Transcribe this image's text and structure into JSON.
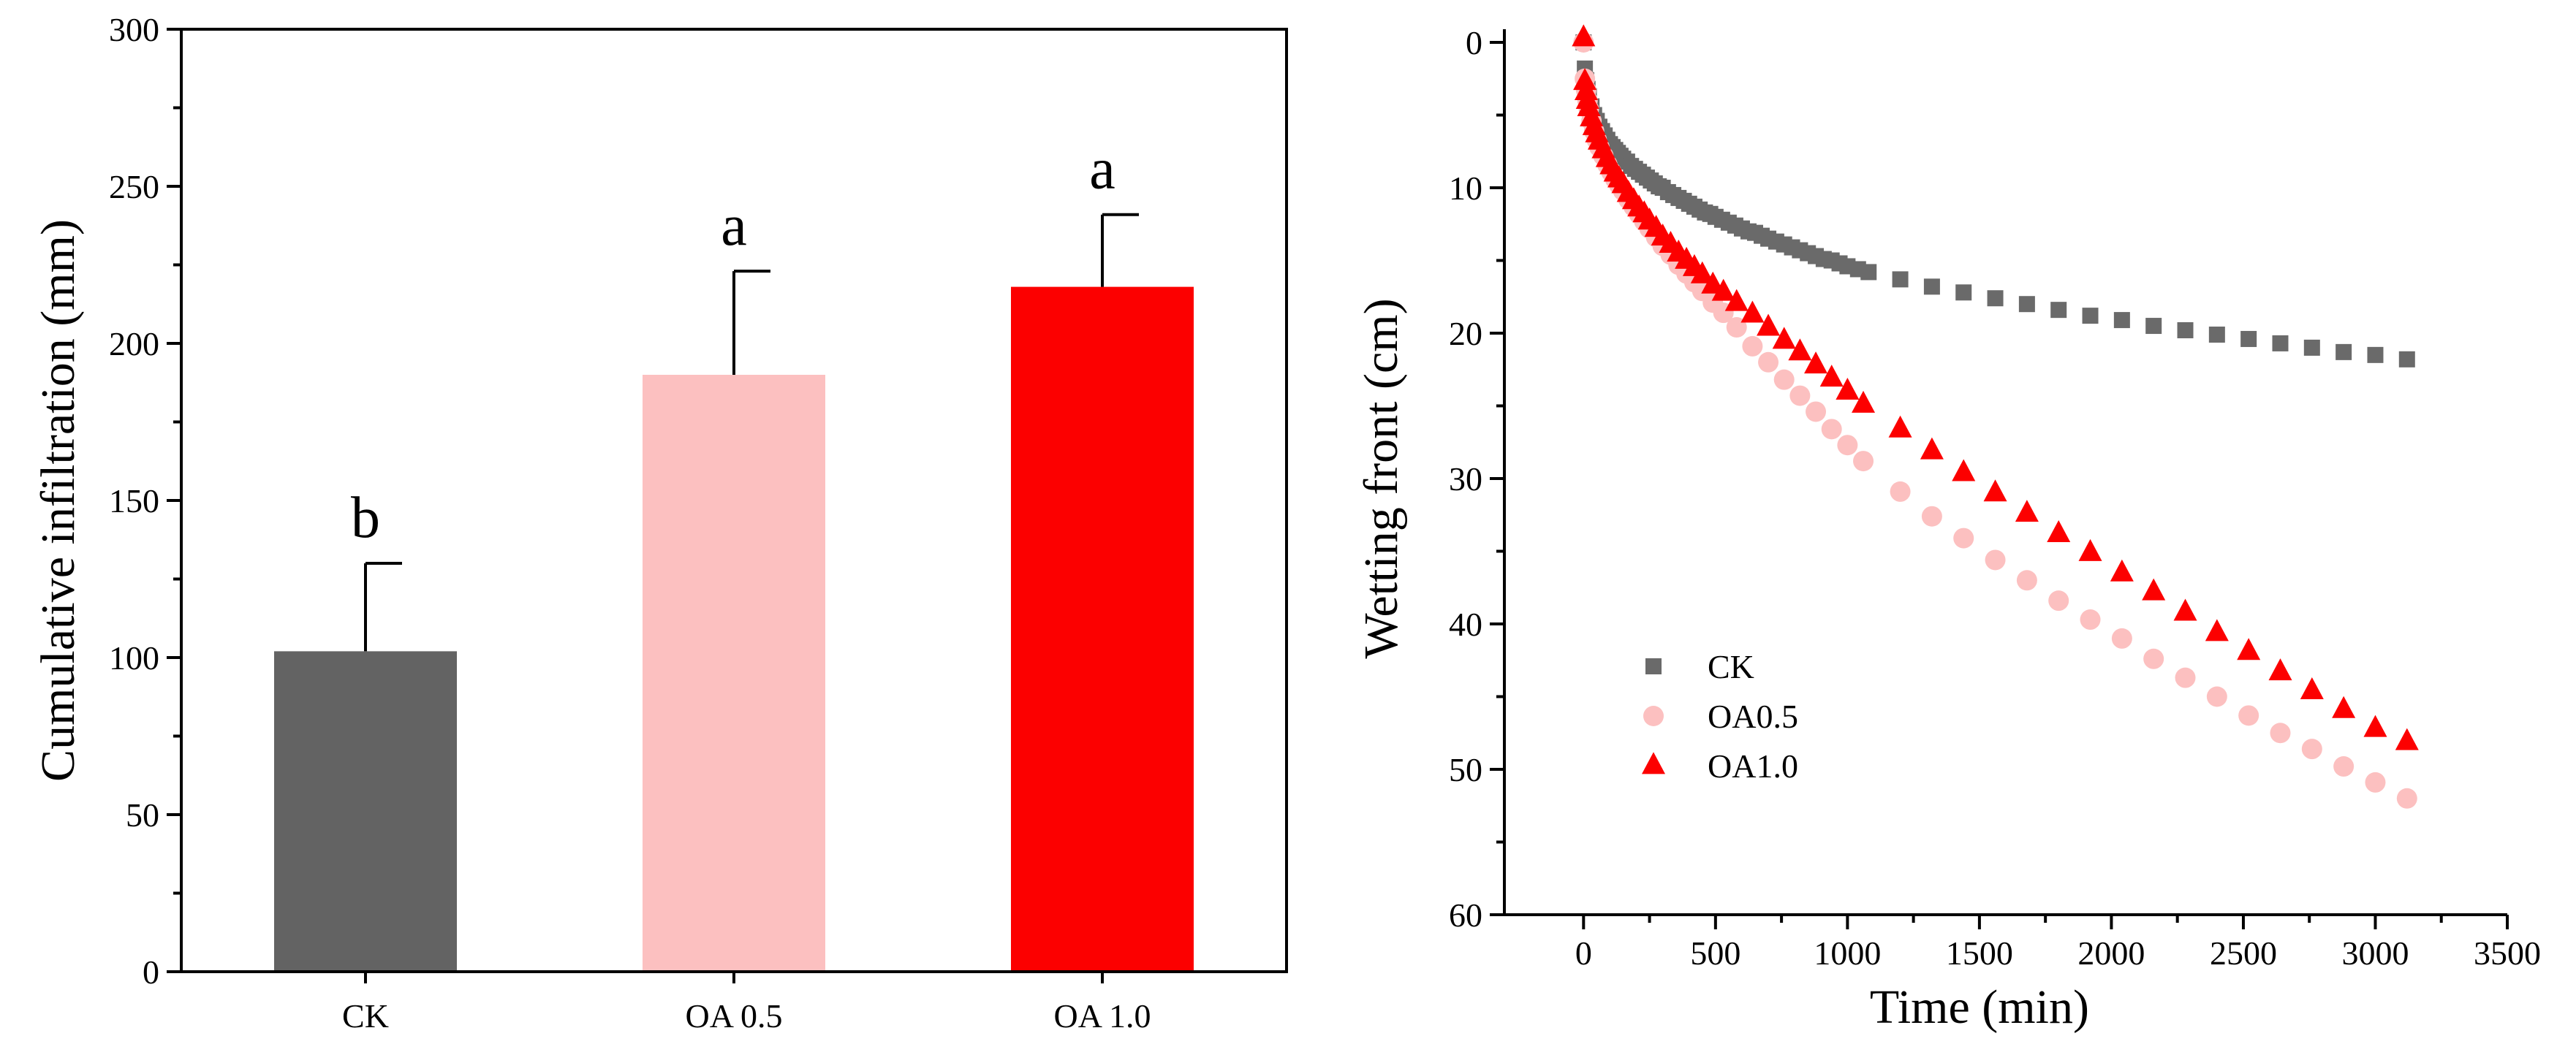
{
  "chart_data": [
    {
      "type": "bar",
      "ylabel": "Cumulative infiltration (mm)",
      "xlabel": "",
      "ylim": [
        0,
        300
      ],
      "yticks": [
        "0",
        "50",
        "100",
        "150",
        "200",
        "250",
        "300"
      ],
      "categories": [
        "CK",
        "OA 0.5",
        "OA 1.0"
      ],
      "values": [
        102,
        190,
        218
      ],
      "errors": [
        28,
        33,
        23
      ],
      "significance": [
        "b",
        "a",
        "a"
      ],
      "colors": [
        "#636363",
        "#fcc0c0",
        "#fc0000"
      ]
    },
    {
      "type": "scatter",
      "xlabel": "Time (min)",
      "ylabel": "Wetting front (cm)",
      "xlim": [
        -300,
        3500
      ],
      "ylim": [
        60,
        -2
      ],
      "xticks": [
        "0",
        "500",
        "1000",
        "1500",
        "2000",
        "2500",
        "3000",
        "3500"
      ],
      "yticks": [
        "0",
        "10",
        "20",
        "30",
        "40",
        "50",
        "60"
      ],
      "legend_position": "lower-left",
      "series": [
        {
          "name": "CK",
          "marker": "square",
          "color": "#6a6a6a",
          "x": [
            0,
            5,
            10,
            15,
            20,
            30,
            40,
            50,
            60,
            70,
            80,
            90,
            100,
            110,
            120,
            130,
            140,
            150,
            165,
            180,
            195,
            210,
            225,
            240,
            255,
            270,
            285,
            300,
            320,
            340,
            360,
            380,
            400,
            420,
            440,
            460,
            480,
            500,
            525,
            550,
            575,
            600,
            625,
            650,
            675,
            700,
            730,
            760,
            790,
            820,
            850,
            880,
            910,
            940,
            970,
            1000,
            1040,
            1080,
            1200,
            1320,
            1440,
            1560,
            1680,
            1800,
            1920,
            2040,
            2160,
            2280,
            2400,
            2520,
            2640,
            2760,
            2880,
            3000,
            3120
          ],
          "y": [
            0,
            1.8,
            2.6,
            3.2,
            3.7,
            4.4,
            5.0,
            5.4,
            5.8,
            6.1,
            6.4,
            6.7,
            7.0,
            7.2,
            7.4,
            7.6,
            7.8,
            8.0,
            8.2,
            8.5,
            8.7,
            8.9,
            9.1,
            9.3,
            9.5,
            9.7,
            9.9,
            10.0,
            10.3,
            10.5,
            10.7,
            10.9,
            11.1,
            11.3,
            11.5,
            11.7,
            11.8,
            12.0,
            12.2,
            12.4,
            12.6,
            12.8,
            13.0,
            13.1,
            13.3,
            13.5,
            13.7,
            13.9,
            14.1,
            14.3,
            14.5,
            14.7,
            14.9,
            15.0,
            15.2,
            15.4,
            15.6,
            15.8,
            16.3,
            16.8,
            17.2,
            17.6,
            18.0,
            18.4,
            18.8,
            19.1,
            19.5,
            19.8,
            20.1,
            20.4,
            20.7,
            21.0,
            21.3,
            21.5,
            21.8
          ]
        },
        {
          "name": "OA0.5",
          "marker": "circle",
          "color": "#fcc0c0",
          "x": [
            0,
            5,
            10,
            15,
            20,
            30,
            40,
            50,
            60,
            75,
            90,
            105,
            120,
            135,
            150,
            170,
            190,
            210,
            230,
            250,
            275,
            300,
            330,
            360,
            390,
            420,
            450,
            490,
            530,
            580,
            640,
            700,
            760,
            820,
            880,
            940,
            1000,
            1060,
            1200,
            1320,
            1440,
            1560,
            1680,
            1800,
            1920,
            2040,
            2160,
            2280,
            2400,
            2520,
            2640,
            2760,
            2880,
            3000,
            3120
          ],
          "y": [
            0,
            2.5,
            3.3,
            4.0,
            4.6,
            5.4,
            6.1,
            6.7,
            7.2,
            7.8,
            8.4,
            8.9,
            9.4,
            9.8,
            10.2,
            10.8,
            11.3,
            11.8,
            12.3,
            12.8,
            13.4,
            14.0,
            14.6,
            15.3,
            15.9,
            16.5,
            17.1,
            17.9,
            18.6,
            19.6,
            20.9,
            22.0,
            23.2,
            24.3,
            25.4,
            26.6,
            27.7,
            28.8,
            30.9,
            32.6,
            34.1,
            35.6,
            37.0,
            38.4,
            39.7,
            41.0,
            42.4,
            43.7,
            45.0,
            46.3,
            47.5,
            48.6,
            49.8,
            50.9,
            52.0
          ]
        },
        {
          "name": "OA1.0",
          "marker": "triangle",
          "color": "#fc0000",
          "x": [
            0,
            5,
            10,
            15,
            20,
            30,
            40,
            50,
            60,
            75,
            90,
            105,
            120,
            135,
            150,
            170,
            190,
            210,
            230,
            250,
            275,
            300,
            330,
            360,
            390,
            420,
            450,
            490,
            530,
            580,
            640,
            700,
            760,
            820,
            880,
            940,
            1000,
            1060,
            1200,
            1320,
            1440,
            1560,
            1680,
            1800,
            1920,
            2040,
            2160,
            2280,
            2400,
            2520,
            2640,
            2760,
            2880,
            3000,
            3120
          ],
          "y": [
            -0.3,
            2.7,
            3.4,
            4.0,
            4.5,
            5.2,
            5.8,
            6.3,
            6.8,
            7.4,
            8.0,
            8.5,
            9.0,
            9.4,
            9.8,
            10.4,
            10.9,
            11.4,
            11.8,
            12.3,
            12.8,
            13.4,
            13.9,
            14.5,
            15.0,
            15.5,
            16.0,
            16.7,
            17.2,
            17.9,
            18.7,
            19.6,
            20.5,
            21.3,
            22.2,
            23.1,
            24.0,
            24.9,
            26.6,
            28.1,
            29.6,
            31.0,
            32.4,
            33.8,
            35.1,
            36.5,
            37.8,
            39.2,
            40.6,
            41.9,
            43.3,
            44.6,
            45.9,
            47.2,
            48.1
          ]
        }
      ]
    }
  ]
}
